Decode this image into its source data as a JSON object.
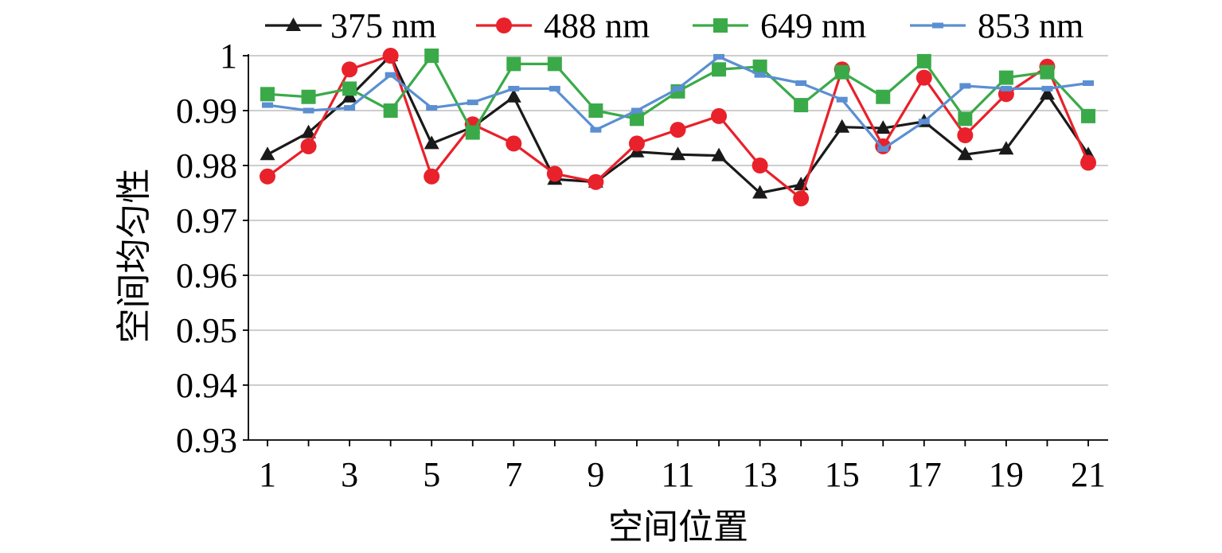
{
  "chart_data": {
    "type": "line",
    "title": "",
    "xlabel": "空间位置",
    "ylabel": "空间均匀性",
    "x": [
      1,
      2,
      3,
      4,
      5,
      6,
      7,
      8,
      9,
      10,
      11,
      12,
      13,
      14,
      15,
      16,
      17,
      18,
      19,
      20,
      21
    ],
    "xticks": [
      1,
      3,
      5,
      7,
      9,
      11,
      13,
      15,
      17,
      19,
      21
    ],
    "xtick_labels": [
      "1",
      "3",
      "5",
      "7",
      "9",
      "11",
      "13",
      "15",
      "17",
      "19",
      "21"
    ],
    "yticks": [
      0.93,
      0.94,
      0.95,
      0.96,
      0.97,
      0.98,
      0.99,
      1
    ],
    "ytick_labels": [
      "0.93",
      "0.94",
      "0.95",
      "0.96",
      "0.97",
      "0.98",
      "0.99",
      "1"
    ],
    "ylim": [
      0.93,
      1.0
    ],
    "xlim": [
      1,
      21
    ],
    "grid": "horizontal",
    "legend_position": "top",
    "series": [
      {
        "name": "375 nm",
        "color": "#1a1a1a",
        "marker": "triangle",
        "values": [
          0.982,
          0.986,
          0.9925,
          1.0,
          0.984,
          0.987,
          0.9925,
          0.9775,
          0.977,
          0.9825,
          0.982,
          0.9818,
          0.975,
          0.9765,
          0.987,
          0.9868,
          0.988,
          0.982,
          0.983,
          0.993,
          0.982
        ]
      },
      {
        "name": "488 nm",
        "color": "#e8212b",
        "marker": "circle",
        "values": [
          0.978,
          0.9835,
          0.9975,
          1.0,
          0.978,
          0.9875,
          0.984,
          0.9785,
          0.977,
          0.984,
          0.9865,
          0.989,
          0.98,
          0.974,
          0.9975,
          0.9835,
          0.996,
          0.9855,
          0.993,
          0.998,
          0.9805
        ]
      },
      {
        "name": "649 nm",
        "color": "#3aaa49",
        "marker": "square",
        "values": [
          0.993,
          0.9925,
          0.994,
          0.99,
          1.0,
          0.986,
          0.9985,
          0.9985,
          0.99,
          0.9885,
          0.9935,
          0.9975,
          0.998,
          0.991,
          0.997,
          0.9925,
          0.999,
          0.9885,
          0.996,
          0.997,
          0.989
        ]
      },
      {
        "name": "853 nm",
        "color": "#5b8fd1",
        "marker": "dash",
        "values": [
          0.991,
          0.99,
          0.9905,
          0.9965,
          0.9905,
          0.9915,
          0.994,
          0.994,
          0.9865,
          0.99,
          0.994,
          0.9998,
          0.9965,
          0.995,
          0.992,
          0.983,
          0.988,
          0.9945,
          0.994,
          0.994,
          0.995
        ]
      }
    ]
  }
}
